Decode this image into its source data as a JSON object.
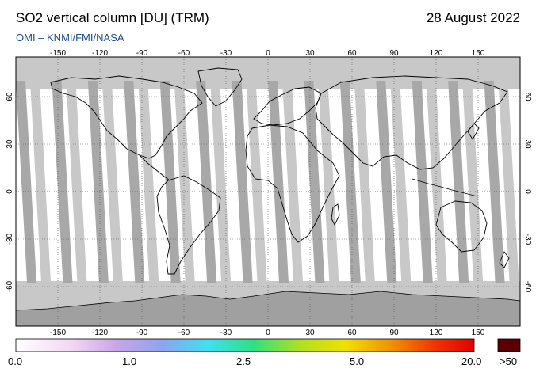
{
  "header": {
    "title": "SO2 vertical column [DU] (TRM)",
    "date": "28 August 2022",
    "subtitle": "OMI  –  KNMI/FMI/NASA"
  },
  "map": {
    "longitude_ticks": [
      "-150",
      "-120",
      "-90",
      "-60",
      "-30",
      "0",
      "30",
      "60",
      "90",
      "120",
      "150"
    ],
    "latitude_ticks": [
      "60",
      "30",
      "0",
      "-30",
      "-60"
    ],
    "colors": {
      "no_data": "#c8c8c8",
      "orbit_stripe": "#a8a8a8",
      "antarctica": "#a0a0a0",
      "coastline": "#000000",
      "background_low_value": "#ffffff"
    }
  },
  "colorbar": {
    "tick_labels": [
      "0.0",
      "1.0",
      "2.5",
      "5.0",
      "20.0"
    ],
    "overflow_label": ">50",
    "gradient_colors": [
      "#ffffff",
      "#f3d8f3",
      "#c9a4e8",
      "#8ea4f0",
      "#3fe0f0",
      "#30e080",
      "#b0e020",
      "#f0e000",
      "#f09000",
      "#f03000",
      "#e00000"
    ],
    "overflow_color": "#5a0000"
  }
}
